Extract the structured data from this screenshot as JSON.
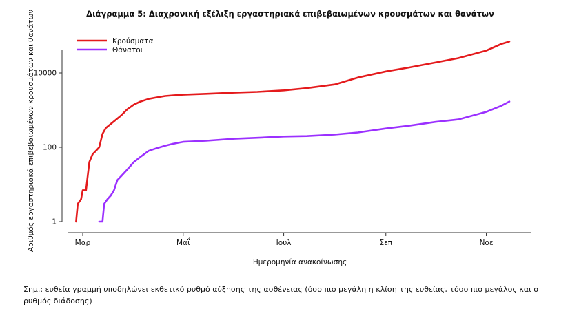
{
  "chart_data": {
    "type": "line",
    "title": "Διάγραμμα 5: Διαχρονική εξέλιξη εργαστηριακά επιβεβαιωμένων κρουσμάτων και θανάτων",
    "xlabel": "Ημερομηνία ανακοίνωσης",
    "ylabel": "Αριθμός εργαστηριακά επιβεβαιωμένων κρουσμάτων και θανάτων",
    "y_scale": "log",
    "ylim": [
      1,
      100000
    ],
    "y_ticks": [
      1,
      100,
      10000
    ],
    "x_ticks": [
      {
        "label": "Μαρ",
        "date": "2020-03-01"
      },
      {
        "label": "Μαΐ",
        "date": "2020-05-01"
      },
      {
        "label": "Ιουλ",
        "date": "2020-07-01"
      },
      {
        "label": "Σεπ",
        "date": "2020-09-01"
      },
      {
        "label": "Νοε",
        "date": "2020-11-01"
      }
    ],
    "grid": false,
    "legend_position": "top-left",
    "series": [
      {
        "name": "Κρούσματα",
        "color": "#e41a1c",
        "points": [
          [
            "2020-02-26",
            1
          ],
          [
            "2020-02-27",
            3
          ],
          [
            "2020-02-29",
            4
          ],
          [
            "2020-03-01",
            7
          ],
          [
            "2020-03-03",
            7
          ],
          [
            "2020-03-05",
            40
          ],
          [
            "2020-03-07",
            65
          ],
          [
            "2020-03-09",
            80
          ],
          [
            "2020-03-11",
            100
          ],
          [
            "2020-03-13",
            230
          ],
          [
            "2020-03-15",
            330
          ],
          [
            "2020-03-17",
            390
          ],
          [
            "2020-03-20",
            500
          ],
          [
            "2020-03-24",
            700
          ],
          [
            "2020-03-28",
            1050
          ],
          [
            "2020-04-01",
            1400
          ],
          [
            "2020-04-05",
            1700
          ],
          [
            "2020-04-10",
            2000
          ],
          [
            "2020-04-15",
            2200
          ],
          [
            "2020-04-20",
            2400
          ],
          [
            "2020-04-25",
            2500
          ],
          [
            "2020-05-01",
            2600
          ],
          [
            "2020-05-15",
            2750
          ],
          [
            "2020-06-01",
            2950
          ],
          [
            "2020-06-15",
            3100
          ],
          [
            "2020-07-01",
            3400
          ],
          [
            "2020-07-15",
            3900
          ],
          [
            "2020-08-01",
            4900
          ],
          [
            "2020-08-15",
            7500
          ],
          [
            "2020-09-01",
            11000
          ],
          [
            "2020-09-15",
            14000
          ],
          [
            "2020-10-01",
            19000
          ],
          [
            "2020-10-15",
            25000
          ],
          [
            "2020-11-01",
            40000
          ],
          [
            "2020-11-10",
            60000
          ],
          [
            "2020-11-15",
            70000
          ]
        ]
      },
      {
        "name": "Θάνατοι",
        "color": "#9b30ff",
        "points": [
          [
            "2020-03-11",
            1
          ],
          [
            "2020-03-13",
            1
          ],
          [
            "2020-03-14",
            3
          ],
          [
            "2020-03-16",
            4
          ],
          [
            "2020-03-18",
            5
          ],
          [
            "2020-03-20",
            7
          ],
          [
            "2020-03-22",
            13
          ],
          [
            "2020-03-25",
            18
          ],
          [
            "2020-03-28",
            25
          ],
          [
            "2020-04-01",
            40
          ],
          [
            "2020-04-05",
            55
          ],
          [
            "2020-04-10",
            80
          ],
          [
            "2020-04-15",
            95
          ],
          [
            "2020-04-20",
            110
          ],
          [
            "2020-04-25",
            125
          ],
          [
            "2020-05-01",
            140
          ],
          [
            "2020-05-15",
            150
          ],
          [
            "2020-06-01",
            170
          ],
          [
            "2020-06-15",
            180
          ],
          [
            "2020-07-01",
            195
          ],
          [
            "2020-07-15",
            200
          ],
          [
            "2020-08-01",
            220
          ],
          [
            "2020-08-15",
            250
          ],
          [
            "2020-09-01",
            320
          ],
          [
            "2020-09-15",
            380
          ],
          [
            "2020-10-01",
            480
          ],
          [
            "2020-10-15",
            560
          ],
          [
            "2020-11-01",
            900
          ],
          [
            "2020-11-10",
            1300
          ],
          [
            "2020-11-15",
            1700
          ]
        ]
      }
    ]
  },
  "note": "Σημ.: ευθεία γραμμή υποδηλώνει εκθετικό ρυθμό αύξησης της ασθένειας (όσο πιο μεγάλη η κλίση της ευθείας, τόσο πιο μεγάλος και ο ρυθμός διάδοσης)"
}
